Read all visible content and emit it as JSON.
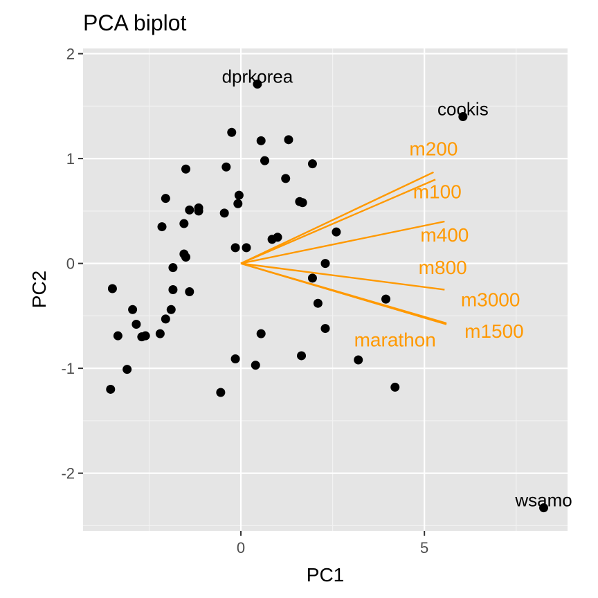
{
  "chart_data": {
    "type": "scatter",
    "title": "PCA biplot",
    "xlabel": "PC1",
    "ylabel": "PC2",
    "xlim": [
      -4.3,
      8.9
    ],
    "ylim": [
      -2.55,
      2.05
    ],
    "xticks": [
      0,
      5
    ],
    "yticks": [
      -2,
      -1,
      0,
      1,
      2
    ],
    "grid": true,
    "background": "#e5e5e5",
    "point_color": "#000000",
    "arrow_color": "#ff9900",
    "points": [
      {
        "x": 0.45,
        "y": 1.71,
        "label": "dprkorea"
      },
      {
        "x": 6.05,
        "y": 1.4,
        "label": "cookis"
      },
      {
        "x": 8.25,
        "y": -2.33,
        "label": "wsamo"
      },
      {
        "x": -0.25,
        "y": 1.25
      },
      {
        "x": 0.55,
        "y": 1.17
      },
      {
        "x": 1.3,
        "y": 1.18
      },
      {
        "x": 0.65,
        "y": 0.98
      },
      {
        "x": -0.4,
        "y": 0.92
      },
      {
        "x": 1.95,
        "y": 0.95
      },
      {
        "x": -1.5,
        "y": 0.9
      },
      {
        "x": 1.22,
        "y": 0.81
      },
      {
        "x": -2.05,
        "y": 0.62
      },
      {
        "x": -0.05,
        "y": 0.65
      },
      {
        "x": -0.08,
        "y": 0.57
      },
      {
        "x": 1.6,
        "y": 0.59
      },
      {
        "x": 1.68,
        "y": 0.58
      },
      {
        "x": -1.4,
        "y": 0.51
      },
      {
        "x": -1.15,
        "y": 0.53
      },
      {
        "x": -1.15,
        "y": 0.5
      },
      {
        "x": -0.45,
        "y": 0.48
      },
      {
        "x": -2.15,
        "y": 0.35
      },
      {
        "x": -1.55,
        "y": 0.38
      },
      {
        "x": 2.6,
        "y": 0.3
      },
      {
        "x": 0.85,
        "y": 0.23
      },
      {
        "x": 1.0,
        "y": 0.25
      },
      {
        "x": -0.15,
        "y": 0.15
      },
      {
        "x": 0.15,
        "y": 0.15
      },
      {
        "x": -1.55,
        "y": 0.09
      },
      {
        "x": -1.5,
        "y": 0.06
      },
      {
        "x": -1.85,
        "y": -0.04
      },
      {
        "x": 2.3,
        "y": 0.0
      },
      {
        "x": 1.95,
        "y": -0.14
      },
      {
        "x": -3.5,
        "y": -0.24
      },
      {
        "x": -1.85,
        "y": -0.25
      },
      {
        "x": -1.4,
        "y": -0.27
      },
      {
        "x": 3.95,
        "y": -0.34
      },
      {
        "x": 2.1,
        "y": -0.38
      },
      {
        "x": -2.95,
        "y": -0.44
      },
      {
        "x": -1.9,
        "y": -0.44
      },
      {
        "x": -2.05,
        "y": -0.53
      },
      {
        "x": -2.85,
        "y": -0.58
      },
      {
        "x": 2.3,
        "y": -0.62
      },
      {
        "x": -3.35,
        "y": -0.69
      },
      {
        "x": -2.7,
        "y": -0.7
      },
      {
        "x": -2.6,
        "y": -0.69
      },
      {
        "x": -2.2,
        "y": -0.67
      },
      {
        "x": 0.55,
        "y": -0.67
      },
      {
        "x": 1.65,
        "y": -0.88
      },
      {
        "x": -0.15,
        "y": -0.91
      },
      {
        "x": 3.2,
        "y": -0.92
      },
      {
        "x": 0.4,
        "y": -0.97
      },
      {
        "x": -3.1,
        "y": -1.01
      },
      {
        "x": 4.2,
        "y": -1.18
      },
      {
        "x": -3.55,
        "y": -1.2
      },
      {
        "x": -0.55,
        "y": -1.23
      }
    ],
    "loadings": [
      {
        "name": "m200",
        "x": 5.25,
        "y": 0.87
      },
      {
        "name": "m100",
        "x": 5.3,
        "y": 0.8
      },
      {
        "name": "m400",
        "x": 5.55,
        "y": 0.4
      },
      {
        "name": "m800",
        "x": 5.55,
        "y": -0.25
      },
      {
        "name": "m3000",
        "x": 5.6,
        "y": -0.57
      },
      {
        "name": "m1500",
        "x": 5.6,
        "y": -0.58
      },
      {
        "name": "marathon",
        "x": 5.6,
        "y": -0.58
      }
    ],
    "loading_labels": [
      {
        "name": "m200",
        "x": 5.25,
        "y": 1.03
      },
      {
        "name": "m100",
        "x": 5.35,
        "y": 0.62
      },
      {
        "name": "m400",
        "x": 5.55,
        "y": 0.21
      },
      {
        "name": "m800",
        "x": 5.5,
        "y": -0.1
      },
      {
        "name": "m3000",
        "x": 6.8,
        "y": -0.41
      },
      {
        "name": "m1500",
        "x": 6.9,
        "y": -0.71
      },
      {
        "name": "marathon",
        "x": 4.2,
        "y": -0.79
      }
    ]
  }
}
